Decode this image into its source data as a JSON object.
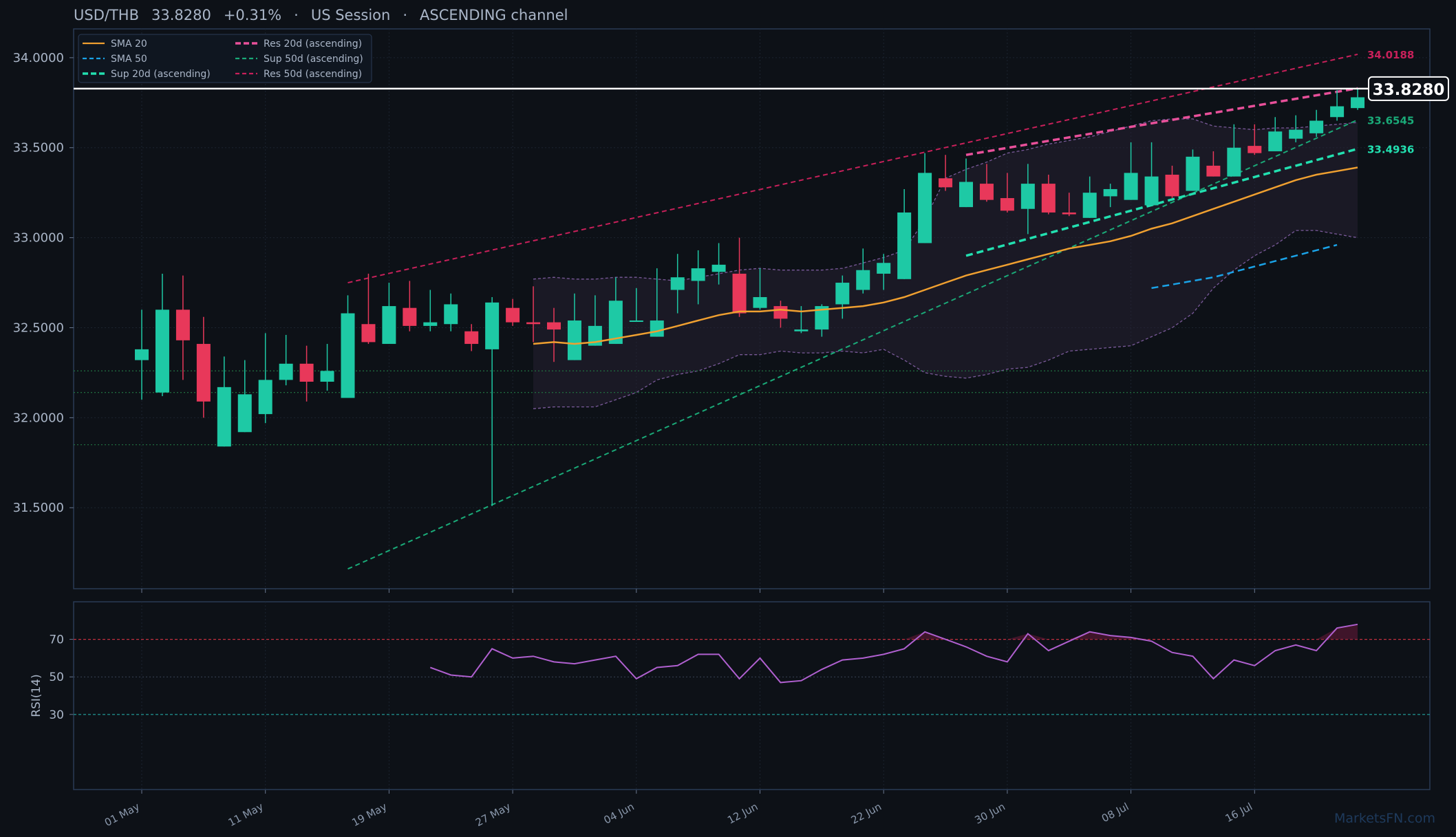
{
  "header": {
    "symbol": "USD/THB",
    "last": "33.8280",
    "change": "+0.31%",
    "sep1": "·",
    "session": "US Session",
    "sep2": "·",
    "pattern": "ASCENDING channel"
  },
  "watermark": "MarketsFN.com",
  "colors": {
    "background": "#0d1117",
    "up": "#1ec9a5",
    "down": "#e8385a",
    "sma20": "#f0a030",
    "sma50": "#1aa3e8",
    "sup20": "#22e0b0",
    "res20": "#e8509a",
    "sup50": "#1aaa78",
    "res50": "#c8205a",
    "rsi": "#b060d0",
    "band": "#7a5a9a",
    "last_price": "#ffffff"
  },
  "chart_data": [
    {
      "type": "candlestick",
      "ylim": [
        31.05,
        34.16
      ],
      "yticks": [
        "34.0000",
        "33.5000",
        "33.0000",
        "32.5000",
        "32.0000",
        "31.5000"
      ],
      "ytick_values": [
        34.0,
        33.5,
        33.0,
        32.5,
        32.0,
        31.5
      ],
      "xticks": [
        "01 May",
        "11 May",
        "19 May",
        "27 May",
        "04 Jun",
        "12 Jun",
        "22 Jun",
        "30 Jun",
        "08 Jul",
        "16 Jul"
      ],
      "xtick_index": [
        0,
        6,
        12,
        18,
        24,
        30,
        36,
        42,
        48,
        54
      ],
      "candles": [
        {
          "o": 32.32,
          "h": 32.6,
          "l": 32.1,
          "c": 32.38
        },
        {
          "o": 32.14,
          "h": 32.8,
          "l": 32.12,
          "c": 32.6
        },
        {
          "o": 32.6,
          "h": 32.79,
          "l": 32.21,
          "c": 32.43
        },
        {
          "o": 32.41,
          "h": 32.56,
          "l": 32.0,
          "c": 32.09
        },
        {
          "o": 31.84,
          "h": 32.34,
          "l": 31.84,
          "c": 32.17
        },
        {
          "o": 31.92,
          "h": 32.32,
          "l": 31.92,
          "c": 32.13
        },
        {
          "o": 32.02,
          "h": 32.47,
          "l": 31.97,
          "c": 32.21
        },
        {
          "o": 32.21,
          "h": 32.46,
          "l": 32.18,
          "c": 32.3
        },
        {
          "o": 32.3,
          "h": 32.4,
          "l": 32.09,
          "c": 32.2
        },
        {
          "o": 32.2,
          "h": 32.41,
          "l": 32.15,
          "c": 32.26
        },
        {
          "o": 32.11,
          "h": 32.68,
          "l": 32.11,
          "c": 32.58
        },
        {
          "o": 32.52,
          "h": 32.8,
          "l": 32.41,
          "c": 32.42
        },
        {
          "o": 32.41,
          "h": 32.75,
          "l": 32.41,
          "c": 32.62
        },
        {
          "o": 32.61,
          "h": 32.76,
          "l": 32.48,
          "c": 32.51
        },
        {
          "o": 32.51,
          "h": 32.71,
          "l": 32.48,
          "c": 32.53
        },
        {
          "o": 32.52,
          "h": 32.69,
          "l": 32.48,
          "c": 32.63
        },
        {
          "o": 32.48,
          "h": 32.52,
          "l": 32.37,
          "c": 32.41
        },
        {
          "o": 32.38,
          "h": 32.67,
          "l": 31.51,
          "c": 32.64
        },
        {
          "o": 32.61,
          "h": 32.66,
          "l": 32.51,
          "c": 32.53
        },
        {
          "o": 32.53,
          "h": 32.73,
          "l": 32.42,
          "c": 32.52
        },
        {
          "o": 32.53,
          "h": 32.61,
          "l": 32.31,
          "c": 32.49
        },
        {
          "o": 32.32,
          "h": 32.69,
          "l": 32.32,
          "c": 32.54
        },
        {
          "o": 32.4,
          "h": 32.68,
          "l": 32.4,
          "c": 32.51
        },
        {
          "o": 32.41,
          "h": 32.78,
          "l": 32.41,
          "c": 32.65
        },
        {
          "o": 32.54,
          "h": 32.72,
          "l": 32.54,
          "c": 32.54
        },
        {
          "o": 32.45,
          "h": 32.83,
          "l": 32.45,
          "c": 32.54
        },
        {
          "o": 32.71,
          "h": 32.91,
          "l": 32.58,
          "c": 32.78
        },
        {
          "o": 32.76,
          "h": 32.93,
          "l": 32.63,
          "c": 32.83
        },
        {
          "o": 32.81,
          "h": 32.97,
          "l": 32.74,
          "c": 32.85
        },
        {
          "o": 32.8,
          "h": 33.0,
          "l": 32.56,
          "c": 32.58
        },
        {
          "o": 32.61,
          "h": 32.83,
          "l": 32.6,
          "c": 32.67
        },
        {
          "o": 32.62,
          "h": 32.65,
          "l": 32.5,
          "c": 32.55
        },
        {
          "o": 32.48,
          "h": 32.62,
          "l": 32.47,
          "c": 32.49
        },
        {
          "o": 32.49,
          "h": 32.63,
          "l": 32.45,
          "c": 32.62
        },
        {
          "o": 32.63,
          "h": 32.79,
          "l": 32.55,
          "c": 32.75
        },
        {
          "o": 32.71,
          "h": 32.94,
          "l": 32.69,
          "c": 32.82
        },
        {
          "o": 32.8,
          "h": 32.91,
          "l": 32.71,
          "c": 32.86
        },
        {
          "o": 32.77,
          "h": 33.27,
          "l": 32.77,
          "c": 33.14
        },
        {
          "o": 32.97,
          "h": 33.47,
          "l": 32.97,
          "c": 33.36
        },
        {
          "o": 33.33,
          "h": 33.46,
          "l": 33.26,
          "c": 33.28
        },
        {
          "o": 33.17,
          "h": 33.44,
          "l": 33.17,
          "c": 33.31
        },
        {
          "o": 33.3,
          "h": 33.41,
          "l": 33.2,
          "c": 33.21
        },
        {
          "o": 33.22,
          "h": 33.36,
          "l": 33.14,
          "c": 33.15
        },
        {
          "o": 33.16,
          "h": 33.41,
          "l": 33.02,
          "c": 33.3
        },
        {
          "o": 33.3,
          "h": 33.35,
          "l": 33.13,
          "c": 33.14
        },
        {
          "o": 33.14,
          "h": 33.25,
          "l": 33.12,
          "c": 33.13
        },
        {
          "o": 33.11,
          "h": 33.34,
          "l": 33.11,
          "c": 33.25
        },
        {
          "o": 33.23,
          "h": 33.3,
          "l": 33.17,
          "c": 33.27
        },
        {
          "o": 33.21,
          "h": 33.53,
          "l": 33.21,
          "c": 33.36
        },
        {
          "o": 33.18,
          "h": 33.53,
          "l": 33.18,
          "c": 33.34
        },
        {
          "o": 33.35,
          "h": 33.4,
          "l": 33.22,
          "c": 33.23
        },
        {
          "o": 33.26,
          "h": 33.49,
          "l": 33.26,
          "c": 33.45
        },
        {
          "o": 33.4,
          "h": 33.48,
          "l": 33.34,
          "c": 33.34
        },
        {
          "o": 33.34,
          "h": 33.63,
          "l": 33.34,
          "c": 33.5
        },
        {
          "o": 33.51,
          "h": 33.63,
          "l": 33.46,
          "c": 33.47
        },
        {
          "o": 33.48,
          "h": 33.67,
          "l": 33.48,
          "c": 33.59
        },
        {
          "o": 33.55,
          "h": 33.68,
          "l": 33.53,
          "c": 33.6
        },
        {
          "o": 33.58,
          "h": 33.71,
          "l": 33.56,
          "c": 33.65
        },
        {
          "o": 33.67,
          "h": 33.82,
          "l": 33.65,
          "c": 33.73
        },
        {
          "o": 33.72,
          "h": 33.83,
          "l": 33.71,
          "c": 33.78
        }
      ],
      "sma20": {
        "start": 19,
        "values": [
          32.41,
          32.42,
          32.41,
          32.42,
          32.44,
          32.46,
          32.48,
          32.51,
          32.54,
          32.57,
          32.59,
          32.59,
          32.6,
          32.59,
          32.6,
          32.61,
          32.62,
          32.64,
          32.67,
          32.71,
          32.75,
          32.79,
          32.82,
          32.85,
          32.88,
          32.91,
          32.94,
          32.96,
          32.98,
          33.01,
          33.05,
          33.08,
          33.12,
          33.16,
          33.2,
          33.24,
          33.28,
          33.32,
          33.35,
          33.37,
          33.39
        ]
      },
      "sma50": {
        "start": 49,
        "values": [
          32.72,
          32.74,
          32.76,
          32.78,
          32.81,
          32.84,
          32.87,
          32.9,
          32.93,
          32.96
        ]
      },
      "band_upper": {
        "start": 19,
        "values": [
          32.77,
          32.78,
          32.77,
          32.77,
          32.78,
          32.78,
          32.77,
          32.76,
          32.78,
          32.8,
          32.82,
          32.83,
          32.82,
          32.82,
          32.82,
          32.83,
          32.86,
          32.89,
          32.93,
          33.1,
          33.33,
          33.38,
          33.42,
          33.47,
          33.49,
          33.52,
          33.54,
          33.56,
          33.59,
          33.62,
          33.65,
          33.66,
          33.66,
          33.62,
          33.61,
          33.6,
          33.61,
          33.61,
          33.62,
          33.63,
          33.64
        ]
      },
      "band_lower": {
        "start": 19,
        "values": [
          32.05,
          32.06,
          32.06,
          32.06,
          32.1,
          32.14,
          32.21,
          32.24,
          32.26,
          32.3,
          32.35,
          32.35,
          32.37,
          32.36,
          32.36,
          32.37,
          32.36,
          32.38,
          32.32,
          32.25,
          32.23,
          32.22,
          32.24,
          32.27,
          32.28,
          32.32,
          32.37,
          32.38,
          32.39,
          32.4,
          32.45,
          32.5,
          32.58,
          32.72,
          32.82,
          32.9,
          32.96,
          33.04,
          33.04,
          33.02,
          33.0
        ]
      },
      "sup_20d": {
        "x": [
          40,
          59
        ],
        "y": [
          32.9,
          33.4936
        ],
        "label": "Sup 20d (ascending)",
        "value_label": "33.4936"
      },
      "res_20d": {
        "x": [
          40,
          59
        ],
        "y": [
          33.46,
          33.83
        ],
        "label": "Res 20d (ascending)"
      },
      "sup_50d": {
        "x": [
          10,
          59
        ],
        "y": [
          31.16,
          33.6545
        ],
        "label": "Sup 50d (ascending)",
        "value_label": "33.6545"
      },
      "res_50d": {
        "x": [
          10,
          59
        ],
        "y": [
          32.75,
          34.0188
        ],
        "label": "Res 50d (ascending)",
        "value_label": "34.0188"
      },
      "hlines": [
        32.26,
        32.14,
        31.85
      ],
      "last_price": 33.828,
      "last_price_label": "33.8280",
      "legend": {
        "position": "top-left",
        "items": [
          {
            "label": "SMA 20",
            "style": "solid",
            "color_key": "sma20"
          },
          {
            "label": "Res 20d (ascending)",
            "style": "dashed-bold",
            "color_key": "res20"
          },
          {
            "label": "SMA 50",
            "style": "dashed",
            "color_key": "sma50"
          },
          {
            "label": "Sup 50d (ascending)",
            "style": "dashed",
            "color_key": "sup50"
          },
          {
            "label": "Sup 20d (ascending)",
            "style": "dashed-bold",
            "color_key": "sup20"
          },
          {
            "label": "Res 50d (ascending)",
            "style": "dashed",
            "color_key": "res50"
          }
        ]
      }
    },
    {
      "type": "line",
      "ylabel": "RSI(14)",
      "ylim": [
        -10,
        90
      ],
      "yticks": [
        "70",
        "50",
        "30"
      ],
      "ytick_values": [
        70,
        50,
        30
      ],
      "levels": {
        "overbought": 70,
        "mid": 50,
        "oversold": 30
      },
      "start": 14,
      "values": [
        55,
        51,
        50,
        65,
        60,
        61,
        58,
        57,
        59,
        61,
        49,
        55,
        56,
        62,
        62,
        49,
        60,
        47,
        48,
        54,
        59,
        60,
        62,
        65,
        74,
        70,
        66,
        61,
        58,
        73,
        64,
        69,
        74,
        72,
        71,
        69,
        63,
        61,
        49,
        59,
        56,
        64,
        67,
        64,
        76,
        78
      ]
    }
  ]
}
